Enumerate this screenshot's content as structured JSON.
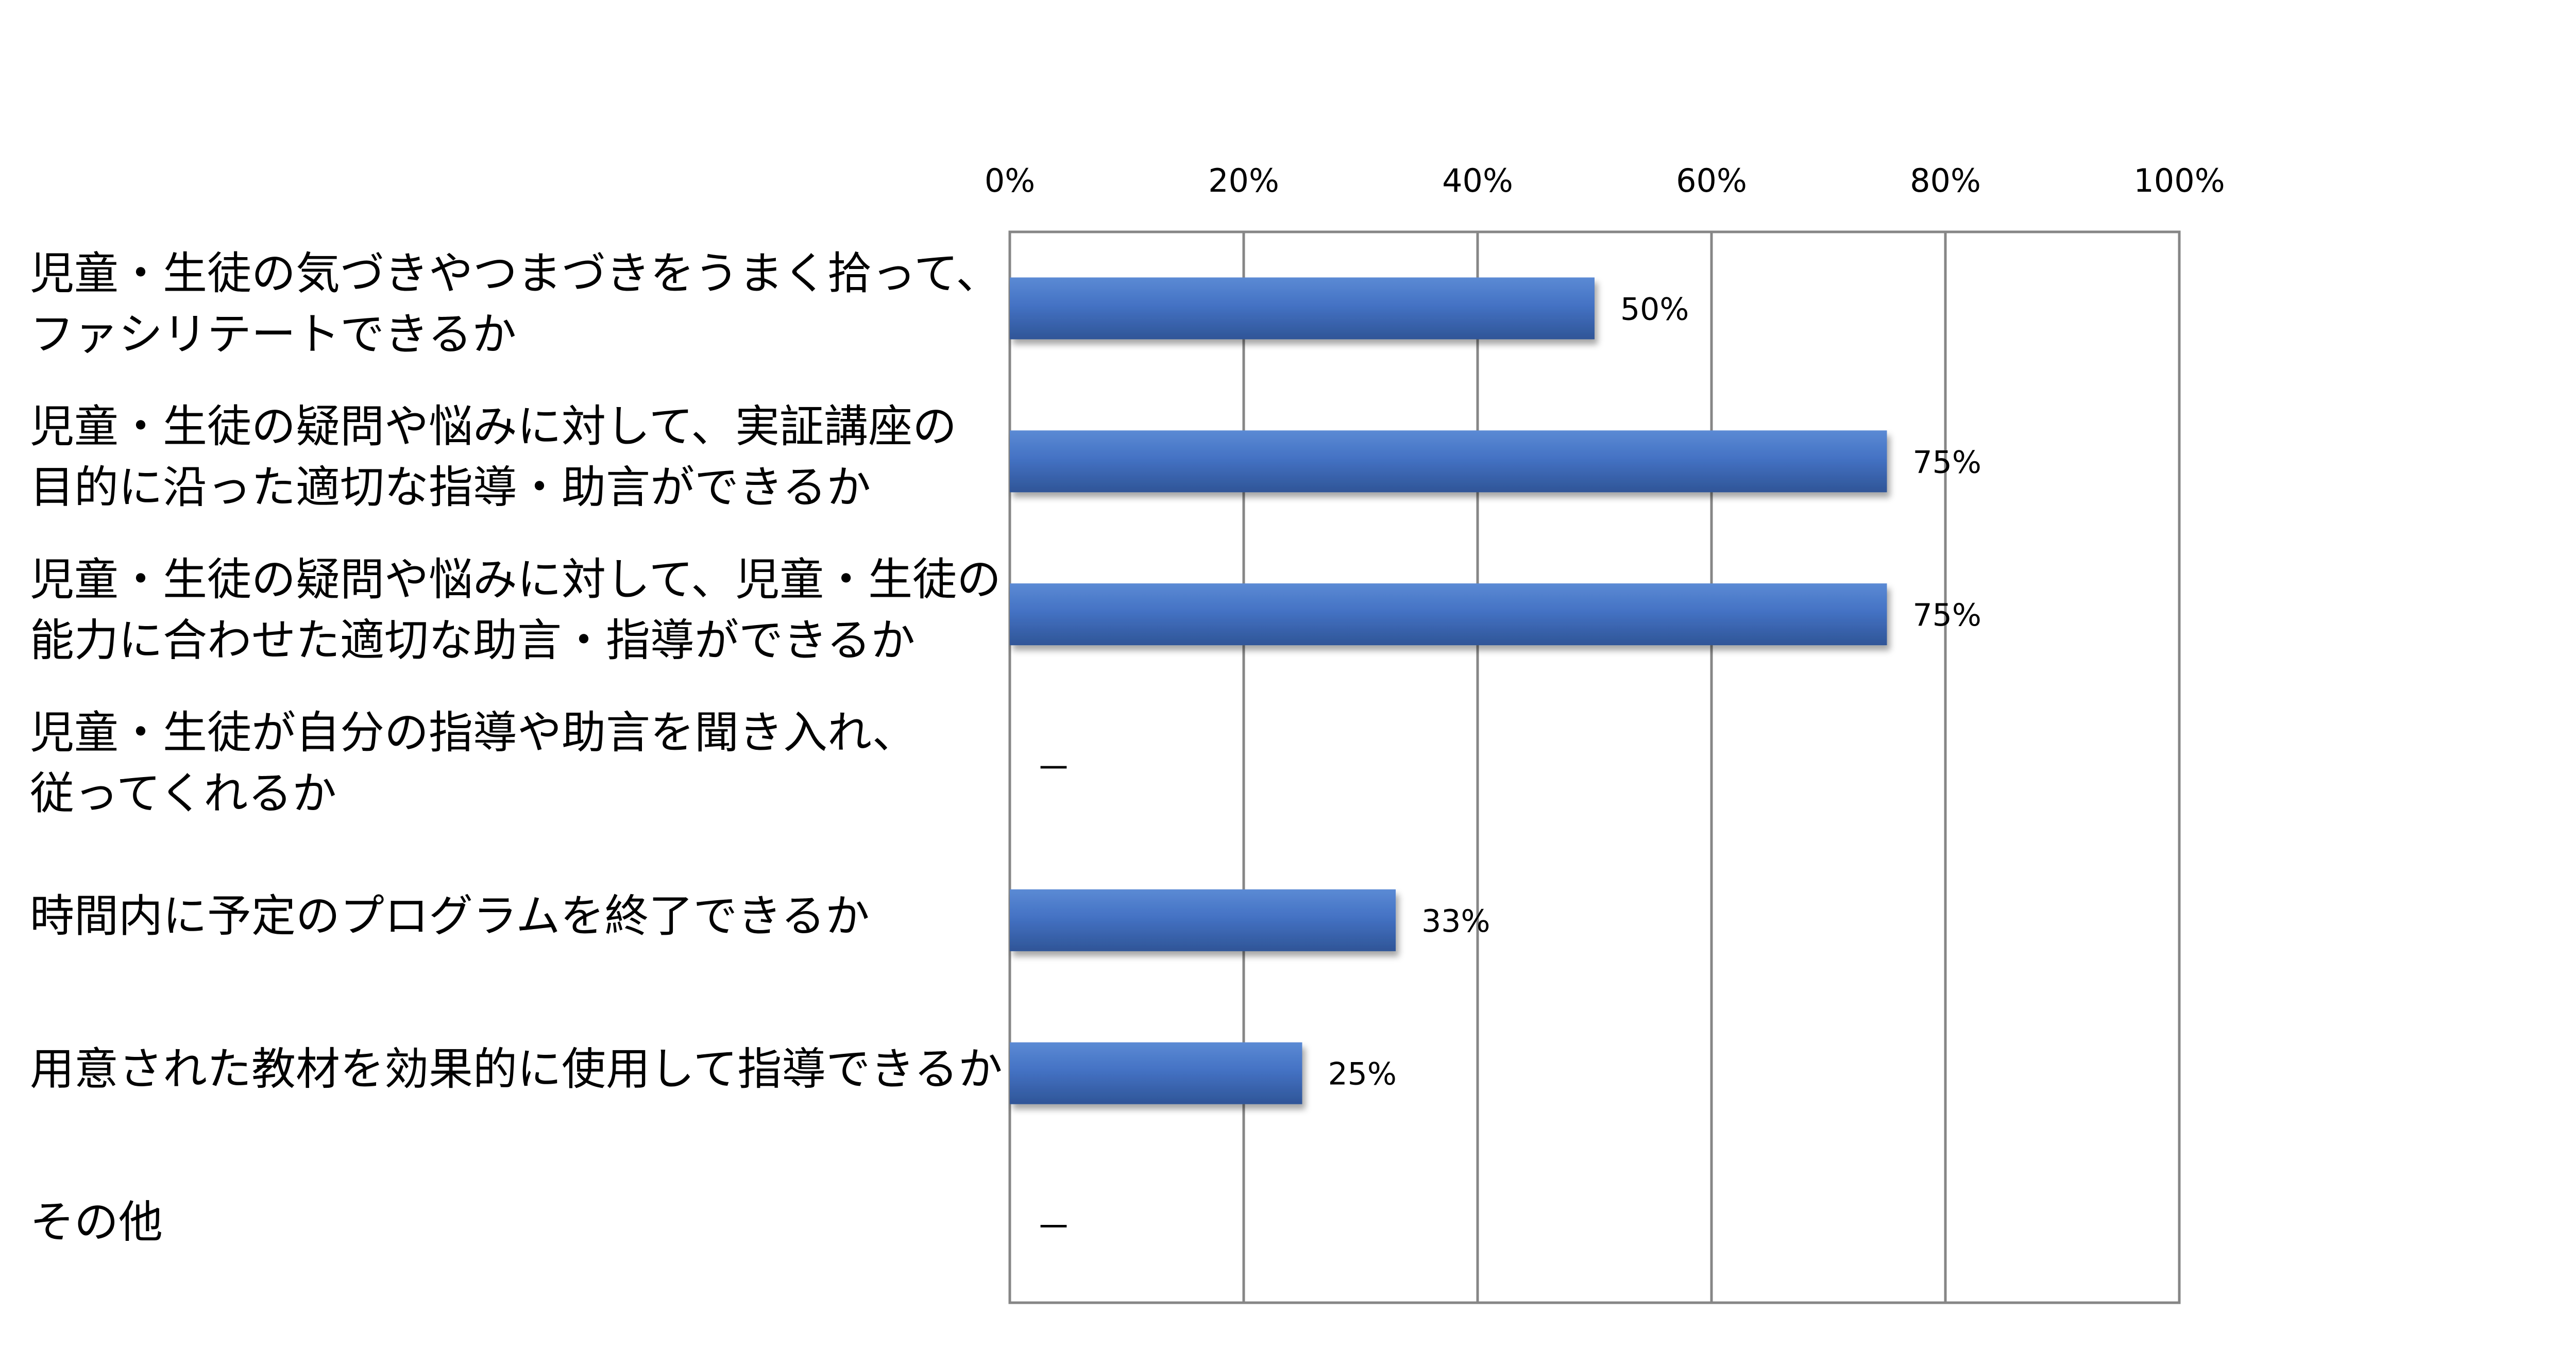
{
  "chart_data": {
    "type": "bar",
    "orientation": "horizontal",
    "title": "",
    "xlabel": "",
    "ylabel": "",
    "xlim": [
      0,
      100
    ],
    "x_ticks": [
      "0%",
      "20%",
      "40%",
      "60%",
      "80%",
      "100%"
    ],
    "grid": true,
    "bar_color": "#4472C4",
    "categories": [
      [
        "児童・生徒の気づきやつまづきをうまく拾って、",
        "ファシリテートできるか"
      ],
      [
        "児童・生徒の疑問や悩みに対して、実証講座の",
        "目的に沿った適切な指導・助言ができるか"
      ],
      [
        "児童・生徒の疑問や悩みに対して、児童・生徒の",
        "能力に合わせた適切な助言・指導ができるか"
      ],
      [
        "児童・生徒が自分の指導や助言を聞き入れ、",
        "従ってくれるか"
      ],
      [
        "時間内に予定のプログラムを終了できるか"
      ],
      [
        "用意された教材を効果的に使用して指導できるか"
      ],
      [
        "その他"
      ]
    ],
    "values": [
      50,
      75,
      75,
      null,
      33,
      25,
      null
    ],
    "data_labels": [
      "50%",
      "75%",
      "75%",
      "－",
      "33%",
      "25%",
      "－"
    ]
  }
}
